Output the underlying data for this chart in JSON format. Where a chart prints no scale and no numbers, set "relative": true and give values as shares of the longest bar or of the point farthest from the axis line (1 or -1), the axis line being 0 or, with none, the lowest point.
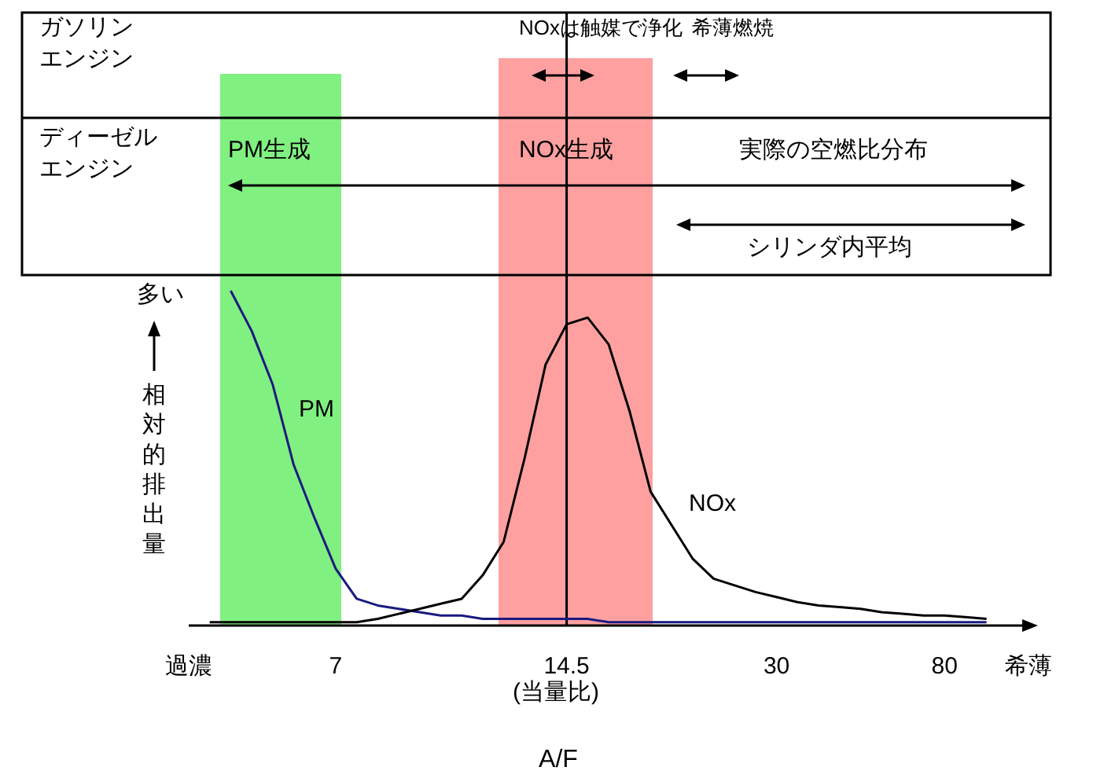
{
  "chart_data": {
    "type": "line",
    "relative": true,
    "xlabel": "A/F",
    "ylabel": "相対的排出量",
    "categories": [
      "過濃",
      null,
      null,
      null,
      null,
      null,
      null,
      "7",
      null,
      null,
      null,
      null,
      null,
      null,
      null,
      null,
      null,
      null,
      "14.5",
      null,
      null,
      null,
      null,
      null,
      null,
      null,
      null,
      null,
      "30",
      null,
      null,
      null,
      null,
      null,
      null,
      null,
      "80",
      null,
      null,
      null,
      "希薄"
    ],
    "series": [
      {
        "name": "PM",
        "color": "#1a1a80",
        "values": [
          null,
          null,
          1.0,
          0.88,
          0.72,
          0.48,
          0.32,
          0.17,
          0.08,
          0.06,
          0.05,
          0.04,
          0.03,
          0.03,
          0.02,
          0.02,
          0.02,
          0.02,
          0.02,
          0.02,
          0.01,
          0.01,
          0.01,
          0.01,
          0.01,
          0.01,
          0.01,
          0.01,
          0.01,
          0.01,
          0.01,
          0.01,
          0.01,
          0.01,
          0.01,
          0.01,
          0.01,
          0.01,
          0.01,
          null,
          null
        ]
      },
      {
        "name": "NOx",
        "color": "#000000",
        "values": [
          null,
          0.01,
          0.01,
          0.01,
          0.01,
          0.01,
          0.01,
          0.01,
          0.01,
          0.02,
          0.035,
          0.05,
          0.065,
          0.08,
          0.15,
          0.25,
          0.5,
          0.78,
          0.9,
          0.92,
          0.84,
          0.64,
          0.4,
          0.3,
          0.2,
          0.14,
          0.12,
          0.1,
          0.085,
          0.07,
          0.06,
          0.055,
          0.05,
          0.04,
          0.035,
          0.03,
          0.03,
          0.025,
          0.02,
          null,
          null
        ]
      }
    ],
    "ref_lines": [
      {
        "axis": "x",
        "value": "14.5",
        "color": "#000000"
      }
    ],
    "annotations": [
      "NOxは触媒で浄化",
      "希薄燃焼",
      "PM生成",
      "NOx生成",
      "実際の空燃比分布",
      "シリンダ内平均",
      "ガソリンエンジン",
      "ディーゼルエンジン",
      "多い",
      "(当量比)"
    ],
    "grid": false,
    "legend": false,
    "marker": "none",
    "line_style": "solid"
  }
}
